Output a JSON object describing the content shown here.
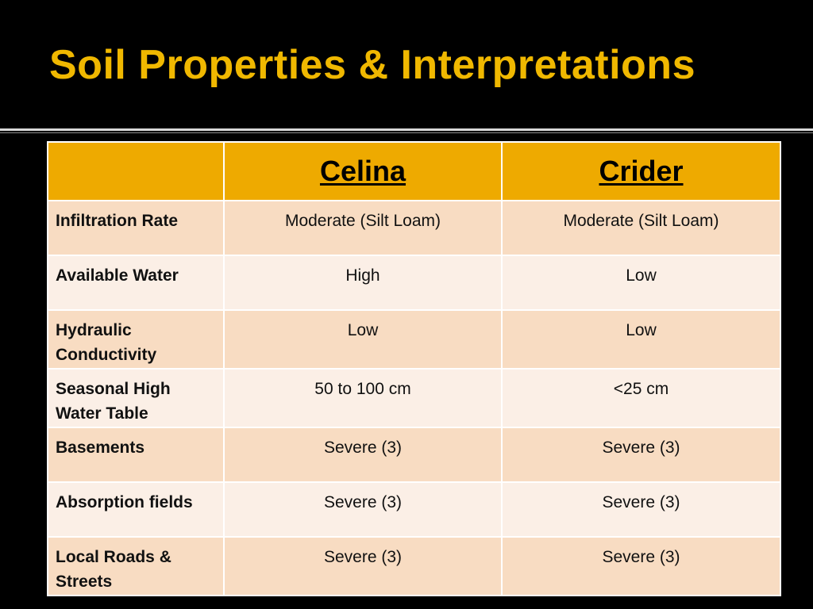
{
  "slide": {
    "title": "Soil Properties & Interpretations"
  },
  "colors": {
    "background": "#000000",
    "title_text": "#f0b800",
    "header_fill": "#eeaa00",
    "row_fill_odd": "#f8dcc2",
    "row_fill_even": "#fbefe6"
  },
  "table": {
    "columns": [
      "",
      "Celina",
      "Crider"
    ],
    "rows": [
      {
        "property": "Infiltration Rate",
        "celina": "Moderate (Silt Loam)",
        "crider": "Moderate (Silt Loam)"
      },
      {
        "property": "Available Water",
        "celina": "High",
        "crider": "Low"
      },
      {
        "property": "Hydraulic Conductivity",
        "celina": "Low",
        "crider": "Low"
      },
      {
        "property": "Seasonal High Water Table",
        "celina": "50 to 100 cm",
        "crider": "<25 cm"
      },
      {
        "property": "Basements",
        "celina": "Severe (3)",
        "crider": "Severe (3)"
      },
      {
        "property": "Absorption fields",
        "celina": "Severe (3)",
        "crider": "Severe (3)"
      },
      {
        "property": "Local Roads & Streets",
        "celina": "Severe (3)",
        "crider": "Severe (3)"
      }
    ]
  }
}
